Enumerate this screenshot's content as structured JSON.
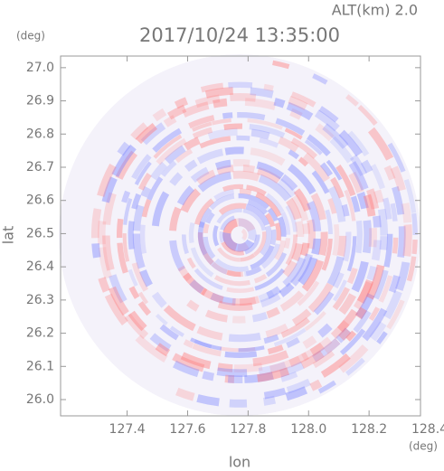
{
  "chart_data": {
    "type": "image",
    "title": "2017/10/24 13:35:00",
    "annotation": "ALT(km) 2.0",
    "x_label": "lon",
    "y_label": "lat",
    "x_unit": "(deg)",
    "y_unit": "(deg)",
    "xlim": [
      127.18,
      128.37
    ],
    "ylim": [
      25.951,
      27.035
    ],
    "xticks": [
      127.4,
      127.6,
      127.8,
      {
        "value": 128.0,
        "label": "128.0"
      },
      128.2,
      128.4
    ],
    "yticks": [
      {
        "value": 26.0,
        "label": "26.0"
      },
      26.1,
      26.2,
      26.3,
      26.4,
      26.5,
      26.6,
      26.7,
      26.8,
      26.9,
      {
        "value": 27.0,
        "label": "27.0"
      }
    ]
  }
}
